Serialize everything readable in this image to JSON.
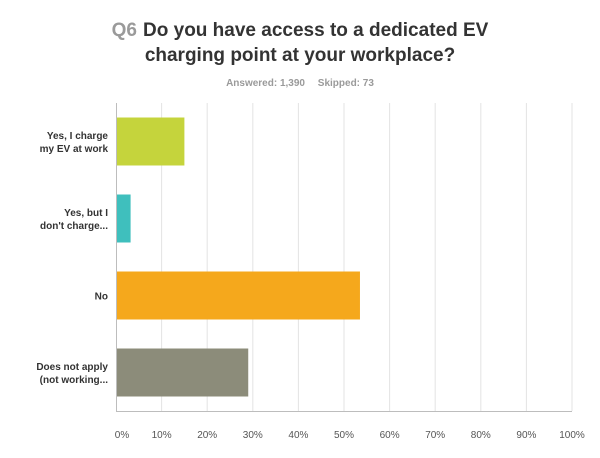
{
  "header": {
    "question_number": "Q6",
    "title_line1": "Do you have access to a dedicated EV",
    "title_line2": "charging point at your workplace?",
    "answered": "Answered: 1,390",
    "skipped": "Skipped: 73"
  },
  "chart_data": {
    "type": "bar",
    "orientation": "horizontal",
    "categories": [
      [
        "Yes, I charge",
        "my EV at work"
      ],
      [
        "Yes, but I",
        "don't charge..."
      ],
      [
        "No"
      ],
      [
        "Does not apply",
        "(not working..."
      ]
    ],
    "values": [
      15,
      3.2,
      53.5,
      29
    ],
    "colors": [
      "#c5d43c",
      "#3fbfbd",
      "#f5a81c",
      "#8c8c7a"
    ],
    "xlim": [
      0,
      100
    ],
    "xticks": [
      "0%",
      "10%",
      "20%",
      "30%",
      "40%",
      "50%",
      "60%",
      "70%",
      "80%",
      "90%",
      "100%"
    ],
    "grid": true
  }
}
